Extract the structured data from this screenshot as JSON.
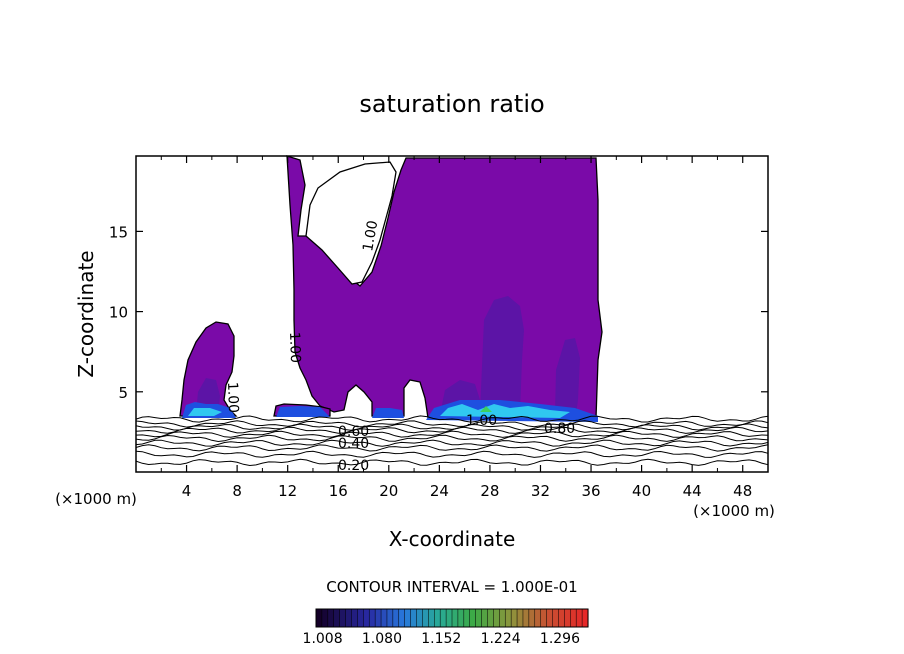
{
  "chart_data": {
    "type": "heatmap",
    "title": "saturation ratio",
    "xlabel": "X-coordinate",
    "ylabel": "Z-coordinate",
    "x_unit_left": "(×1000 m)",
    "x_unit_right": "(×1000 m)",
    "xlim": [
      0,
      50
    ],
    "ylim": [
      0,
      19.7
    ],
    "xticks": [
      "4",
      "8",
      "12",
      "16",
      "20",
      "24",
      "28",
      "32",
      "36",
      "40",
      "44",
      "48"
    ],
    "yticks": [
      "5",
      "10",
      "15"
    ],
    "contour_interval": "CONTOUR INTERVAL = 1.000E-01",
    "contour_labels": [
      "1.00",
      "1.00",
      "1.00",
      "1.00",
      "0.80",
      "0.60",
      "0.40",
      "0.20"
    ],
    "colorbar_ticks": [
      "1.008",
      "1.080",
      "1.152",
      "1.224",
      "1.296"
    ],
    "colorbar_range": [
      1.0,
      1.33
    ],
    "colors": {
      "fill_main": "#7a0aa8",
      "fill_dark": "#5a10a0",
      "cloud_base_blue": "#1e6cf0",
      "cloud_base_cyan": "#24d8f0"
    }
  }
}
